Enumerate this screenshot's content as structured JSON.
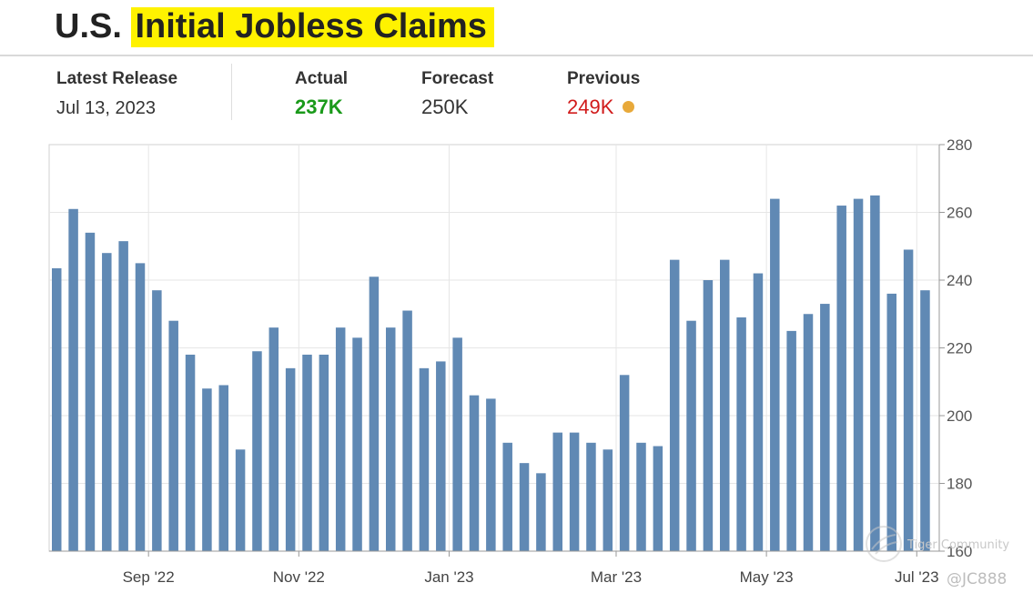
{
  "header": {
    "title_prefix": "U.S.",
    "title_highlight": "Initial Jobless Claims"
  },
  "release": {
    "latest_label": "Latest Release",
    "latest_date": "Jul 13, 2023",
    "actual_label": "Actual",
    "actual_value": "237K",
    "forecast_label": "Forecast",
    "forecast_value": "250K",
    "previous_label": "Previous",
    "previous_value": "249K"
  },
  "colors": {
    "actual": "#1a9a1a",
    "previous": "#d11b1b",
    "bar": "#6089b4",
    "highlight": "#fff200",
    "status_dot": "#e8a93a"
  },
  "watermark": {
    "brand": "Tiger Community",
    "handle": "@JC888"
  },
  "chart_data": {
    "type": "bar",
    "title": "",
    "xlabel": "",
    "ylabel": "",
    "ylim": [
      160,
      280
    ],
    "yticks": [
      160,
      180,
      200,
      220,
      240,
      260,
      280
    ],
    "y_axis_side": "right",
    "grid": true,
    "x_tick_labels": [
      "Sep '22",
      "Nov '22",
      "Jan '23",
      "Mar '23",
      "May '23",
      "Jul '23"
    ],
    "x_tick_after_bar_index": [
      5,
      14,
      23,
      33,
      42,
      51
    ],
    "values": [
      243.5,
      261,
      254,
      248,
      251.5,
      245,
      237,
      228,
      218,
      208,
      209,
      190,
      219,
      226,
      214,
      218,
      218,
      226,
      223,
      241,
      226,
      231,
      214,
      216,
      223,
      206,
      205,
      192,
      186,
      183,
      195,
      195,
      192,
      190,
      212,
      192,
      191,
      246,
      228,
      240,
      246,
      229,
      242,
      264,
      225,
      230,
      233,
      262,
      264,
      265,
      236,
      249,
      237
    ]
  }
}
